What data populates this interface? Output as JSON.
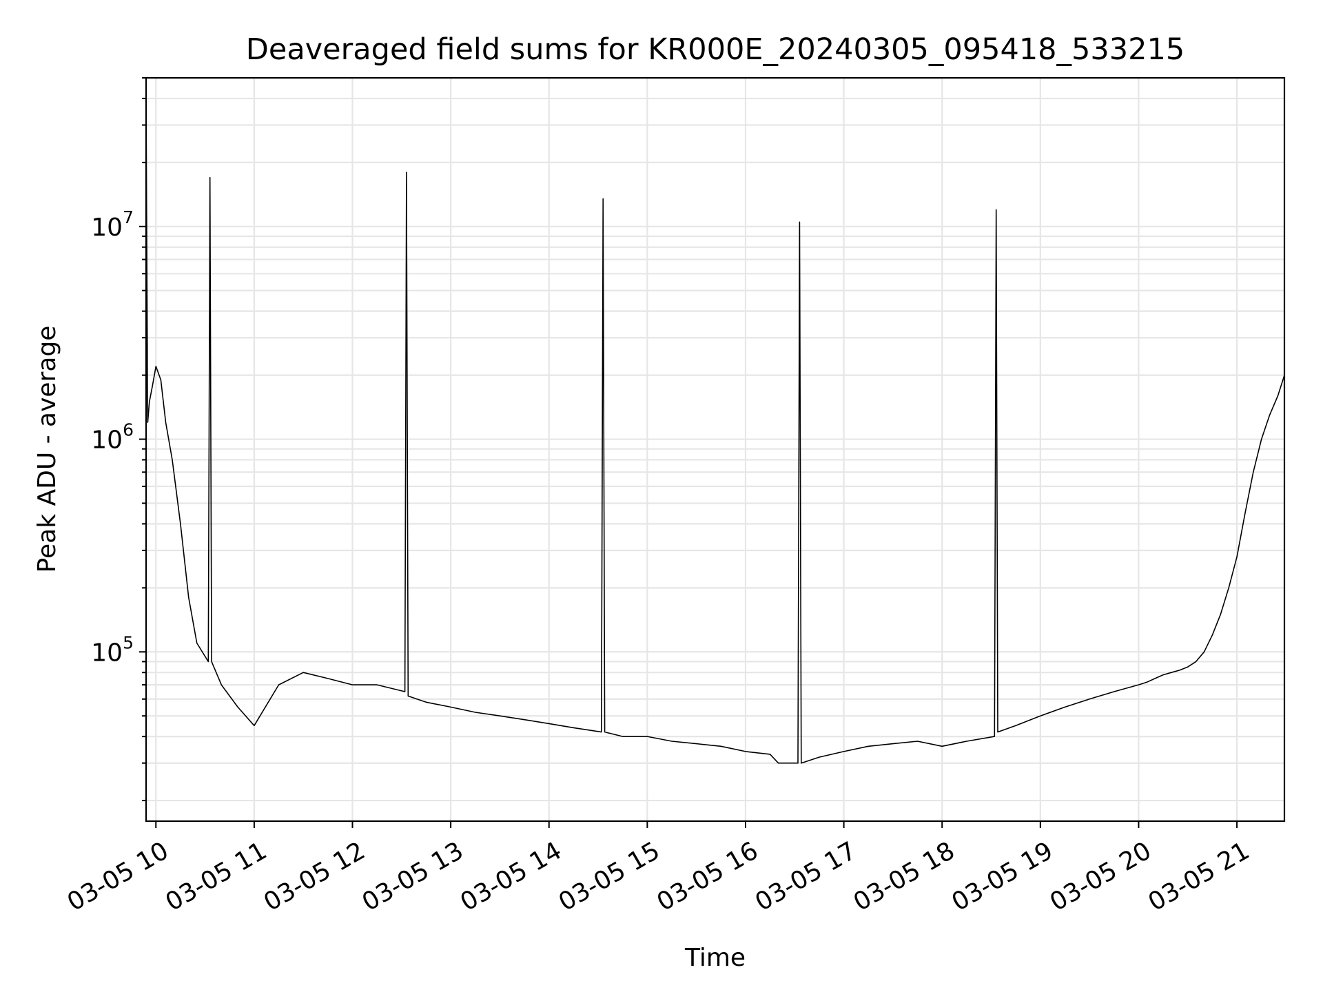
{
  "chart_data": {
    "type": "line",
    "title": "Deaveraged field sums for KR000E_20240305_095418_533215",
    "xlabel": "Time",
    "ylabel": "Peak ADU - average",
    "yscale": "log",
    "ylim": [
      16000,
      50000000
    ],
    "xlim": [
      "2024-03-05 09:54",
      "2024-03-05 21:29"
    ],
    "grid": "on (major and minor)",
    "line_color": "#000000",
    "x_ticks": [
      {
        "value": "2024-03-05 10:00",
        "label": "03-05 10"
      },
      {
        "value": "2024-03-05 11:00",
        "label": "03-05 11"
      },
      {
        "value": "2024-03-05 12:00",
        "label": "03-05 12"
      },
      {
        "value": "2024-03-05 13:00",
        "label": "03-05 13"
      },
      {
        "value": "2024-03-05 14:00",
        "label": "03-05 14"
      },
      {
        "value": "2024-03-05 15:00",
        "label": "03-05 15"
      },
      {
        "value": "2024-03-05 16:00",
        "label": "03-05 16"
      },
      {
        "value": "2024-03-05 17:00",
        "label": "03-05 17"
      },
      {
        "value": "2024-03-05 18:00",
        "label": "03-05 18"
      },
      {
        "value": "2024-03-05 19:00",
        "label": "03-05 19"
      },
      {
        "value": "2024-03-05 20:00",
        "label": "03-05 20"
      },
      {
        "value": "2024-03-05 21:00",
        "label": "03-05 21"
      }
    ],
    "y_ticks": [
      {
        "value": 100000,
        "base": "10",
        "exp": "5"
      },
      {
        "value": 1000000,
        "base": "10",
        "exp": "6"
      },
      {
        "value": 10000000,
        "base": "10",
        "exp": "7"
      }
    ],
    "series": [
      {
        "x": [
          "2024-03-05 09:54",
          "2024-03-05 09:55",
          "2024-03-05 09:56",
          "2024-03-05 09:58",
          "2024-03-05 10:00",
          "2024-03-05 10:03",
          "2024-03-05 10:06",
          "2024-03-05 10:10",
          "2024-03-05 10:15",
          "2024-03-05 10:20",
          "2024-03-05 10:25",
          "2024-03-05 10:32",
          "2024-03-05 10:33",
          "2024-03-05 10:34",
          "2024-03-05 10:40",
          "2024-03-05 10:50",
          "2024-03-05 11:00",
          "2024-03-05 11:15",
          "2024-03-05 11:30",
          "2024-03-05 11:45",
          "2024-03-05 12:00",
          "2024-03-05 12:15",
          "2024-03-05 12:32",
          "2024-03-05 12:33",
          "2024-03-05 12:34",
          "2024-03-05 12:45",
          "2024-03-05 13:00",
          "2024-03-05 13:15",
          "2024-03-05 13:30",
          "2024-03-05 13:45",
          "2024-03-05 14:00",
          "2024-03-05 14:15",
          "2024-03-05 14:32",
          "2024-03-05 14:33",
          "2024-03-05 14:34",
          "2024-03-05 14:45",
          "2024-03-05 15:00",
          "2024-03-05 15:15",
          "2024-03-05 15:30",
          "2024-03-05 15:45",
          "2024-03-05 16:00",
          "2024-03-05 16:15",
          "2024-03-05 16:20",
          "2024-03-05 16:32",
          "2024-03-05 16:33",
          "2024-03-05 16:34",
          "2024-03-05 16:45",
          "2024-03-05 17:00",
          "2024-03-05 17:15",
          "2024-03-05 17:30",
          "2024-03-05 17:45",
          "2024-03-05 18:00",
          "2024-03-05 18:15",
          "2024-03-05 18:32",
          "2024-03-05 18:33",
          "2024-03-05 18:34",
          "2024-03-05 18:45",
          "2024-03-05 19:00",
          "2024-03-05 19:15",
          "2024-03-05 19:30",
          "2024-03-05 19:45",
          "2024-03-05 20:00",
          "2024-03-05 20:05",
          "2024-03-05 20:10",
          "2024-03-05 20:15",
          "2024-03-05 20:20",
          "2024-03-05 20:25",
          "2024-03-05 20:30",
          "2024-03-05 20:35",
          "2024-03-05 20:40",
          "2024-03-05 20:45",
          "2024-03-05 20:50",
          "2024-03-05 20:55",
          "2024-03-05 21:00",
          "2024-03-05 21:05",
          "2024-03-05 21:10",
          "2024-03-05 21:15",
          "2024-03-05 21:20",
          "2024-03-05 21:25",
          "2024-03-05 21:29"
        ],
        "y": [
          35000000,
          1200000,
          1500000,
          1800000,
          2200000,
          1900000,
          1200000,
          800000,
          400000,
          180000,
          110000,
          90000,
          17000000,
          90000,
          70000,
          55000,
          45000,
          70000,
          80000,
          75000,
          70000,
          70000,
          65000,
          18000000,
          62000,
          58000,
          55000,
          52000,
          50000,
          48000,
          46000,
          44000,
          42000,
          13500000,
          42000,
          40000,
          40000,
          38000,
          37000,
          36000,
          34000,
          33000,
          30000,
          30000,
          10500000,
          30000,
          32000,
          34000,
          36000,
          37000,
          38000,
          36000,
          38000,
          40000,
          12000000,
          42000,
          45000,
          50000,
          55000,
          60000,
          65000,
          70000,
          72000,
          75000,
          78000,
          80000,
          82000,
          85000,
          90000,
          100000,
          120000,
          150000,
          200000,
          280000,
          450000,
          700000,
          1000000,
          1300000,
          1600000,
          2000000
        ]
      }
    ]
  }
}
